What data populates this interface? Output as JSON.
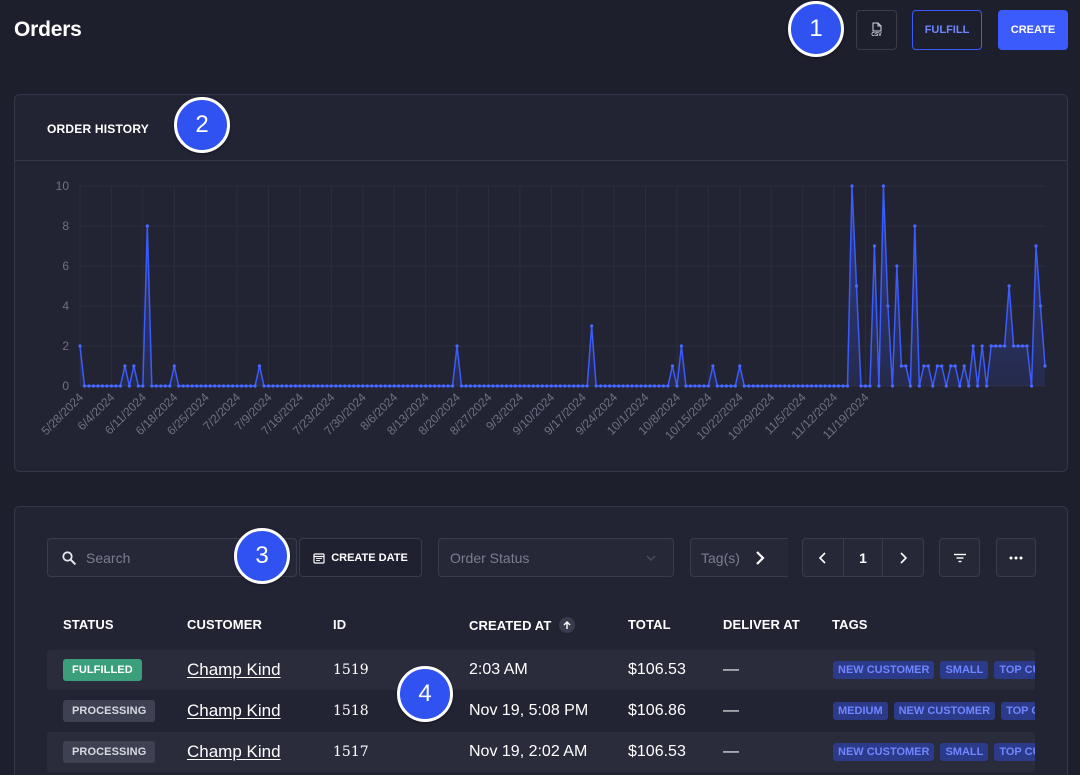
{
  "header": {
    "title": "Orders",
    "csv_label": "CSV",
    "fulfill_label": "FULFILL",
    "create_label": "CREATE"
  },
  "markers": [
    "1",
    "2",
    "3",
    "4"
  ],
  "chart_panel": {
    "title": "ORDER HISTORY"
  },
  "chart_data": {
    "type": "area",
    "title": "ORDER HISTORY",
    "xlabel": "",
    "ylabel": "",
    "ylim": [
      0,
      10
    ],
    "y_ticks": [
      0,
      2,
      4,
      6,
      8,
      10
    ],
    "grid": true,
    "x_start": "5/28/2024",
    "x_end": "11/24/2024",
    "x_tick_labels": [
      "5/28/2024",
      "6/4/2024",
      "6/11/2024",
      "6/18/2024",
      "6/25/2024",
      "7/2/2024",
      "7/9/2024",
      "7/16/2024",
      "7/23/2024",
      "7/30/2024",
      "8/6/2024",
      "8/13/2024",
      "8/20/2024",
      "8/27/2024",
      "9/3/2024",
      "9/10/2024",
      "9/17/2024",
      "9/24/2024",
      "10/1/2024",
      "10/8/2024",
      "10/15/2024",
      "10/22/2024",
      "10/29/2024",
      "11/5/2024",
      "11/12/2024",
      "11/19/2024"
    ],
    "series": [
      {
        "values": [
          2,
          0,
          0,
          0,
          0,
          0,
          0,
          0,
          0,
          0,
          1,
          0,
          1,
          0,
          0,
          8,
          0,
          0,
          0,
          0,
          0,
          1,
          0,
          0,
          0,
          0,
          0,
          0,
          0,
          0,
          0,
          0,
          0,
          0,
          0,
          0,
          0,
          0,
          0,
          0,
          1,
          0,
          0,
          0,
          0,
          0,
          0,
          0,
          0,
          0,
          0,
          0,
          0,
          0,
          0,
          0,
          0,
          0,
          0,
          0,
          0,
          0,
          0,
          0,
          0,
          0,
          0,
          0,
          0,
          0,
          0,
          0,
          0,
          0,
          0,
          0,
          0,
          0,
          0,
          0,
          0,
          0,
          0,
          0,
          2,
          0,
          0,
          0,
          0,
          0,
          0,
          0,
          0,
          0,
          0,
          0,
          0,
          0,
          0,
          0,
          0,
          0,
          0,
          0,
          0,
          0,
          0,
          0,
          0,
          0,
          0,
          0,
          0,
          0,
          3,
          0,
          0,
          0,
          0,
          0,
          0,
          0,
          0,
          0,
          0,
          0,
          0,
          0,
          0,
          0,
          0,
          0,
          1,
          0,
          2,
          0,
          0,
          0,
          0,
          0,
          0,
          1,
          0,
          0,
          0,
          0,
          0,
          1,
          0,
          0,
          0,
          0,
          0,
          0,
          0,
          0,
          0,
          0,
          0,
          0,
          0,
          0,
          0,
          0,
          0,
          0,
          0,
          0,
          0,
          0,
          0,
          0,
          10,
          5,
          0,
          0,
          0,
          7,
          0,
          10,
          4,
          0,
          6,
          1,
          1,
          0,
          8,
          0,
          1,
          1,
          0,
          1,
          1,
          0,
          1,
          1,
          0,
          1,
          0,
          2,
          0,
          2,
          0,
          2,
          2,
          2,
          2,
          5,
          2,
          2,
          2,
          2,
          0,
          7,
          4,
          1
        ]
      }
    ]
  },
  "toolbar": {
    "search_placeholder": "Search",
    "create_date_label": "CREATE DATE",
    "order_status_placeholder": "Order Status",
    "tags_placeholder": "Tag(s)",
    "page": "1"
  },
  "table": {
    "headers": {
      "status": "STATUS",
      "customer": "CUSTOMER",
      "id": "ID",
      "created_at": "CREATED AT",
      "total": "TOTAL",
      "deliver_at": "DELIVER AT",
      "tags": "TAGS"
    },
    "rows": [
      {
        "status": "FULFILLED",
        "customer": "Champ Kind",
        "id": "1519",
        "created_at": "2:03 AM",
        "total": "$106.53",
        "deliver_at": "—",
        "tags": [
          "NEW CUSTOMER",
          "SMALL",
          "TOP CUSTOMER"
        ]
      },
      {
        "status": "PROCESSING",
        "customer": "Champ Kind",
        "id": "1518",
        "created_at": "Nov 19, 5:08 PM",
        "total": "$106.86",
        "deliver_at": "—",
        "tags": [
          "MEDIUM",
          "NEW CUSTOMER",
          "TOP CUSTOMER"
        ]
      },
      {
        "status": "PROCESSING",
        "customer": "Champ Kind",
        "id": "1517",
        "created_at": "Nov 19, 2:02 AM",
        "total": "$106.53",
        "deliver_at": "—",
        "tags": [
          "NEW CUSTOMER",
          "SMALL",
          "TOP CUSTOMER"
        ]
      }
    ]
  },
  "colors": {
    "background": "#1e1f2c",
    "panel": "#232433",
    "accent": "#3b5bfd",
    "fulfilled": "#3b9f7c",
    "processing": "#3e4152",
    "tag_bg": "#2c3a8a",
    "tag_text": "#6f86ff"
  },
  "icons": [
    "csv-file-icon",
    "search-icon",
    "calendar-icon",
    "chevron-down-icon",
    "chevron-right-icon",
    "chevron-left-icon",
    "filter-icon",
    "more-icon",
    "sort-up-icon"
  ]
}
